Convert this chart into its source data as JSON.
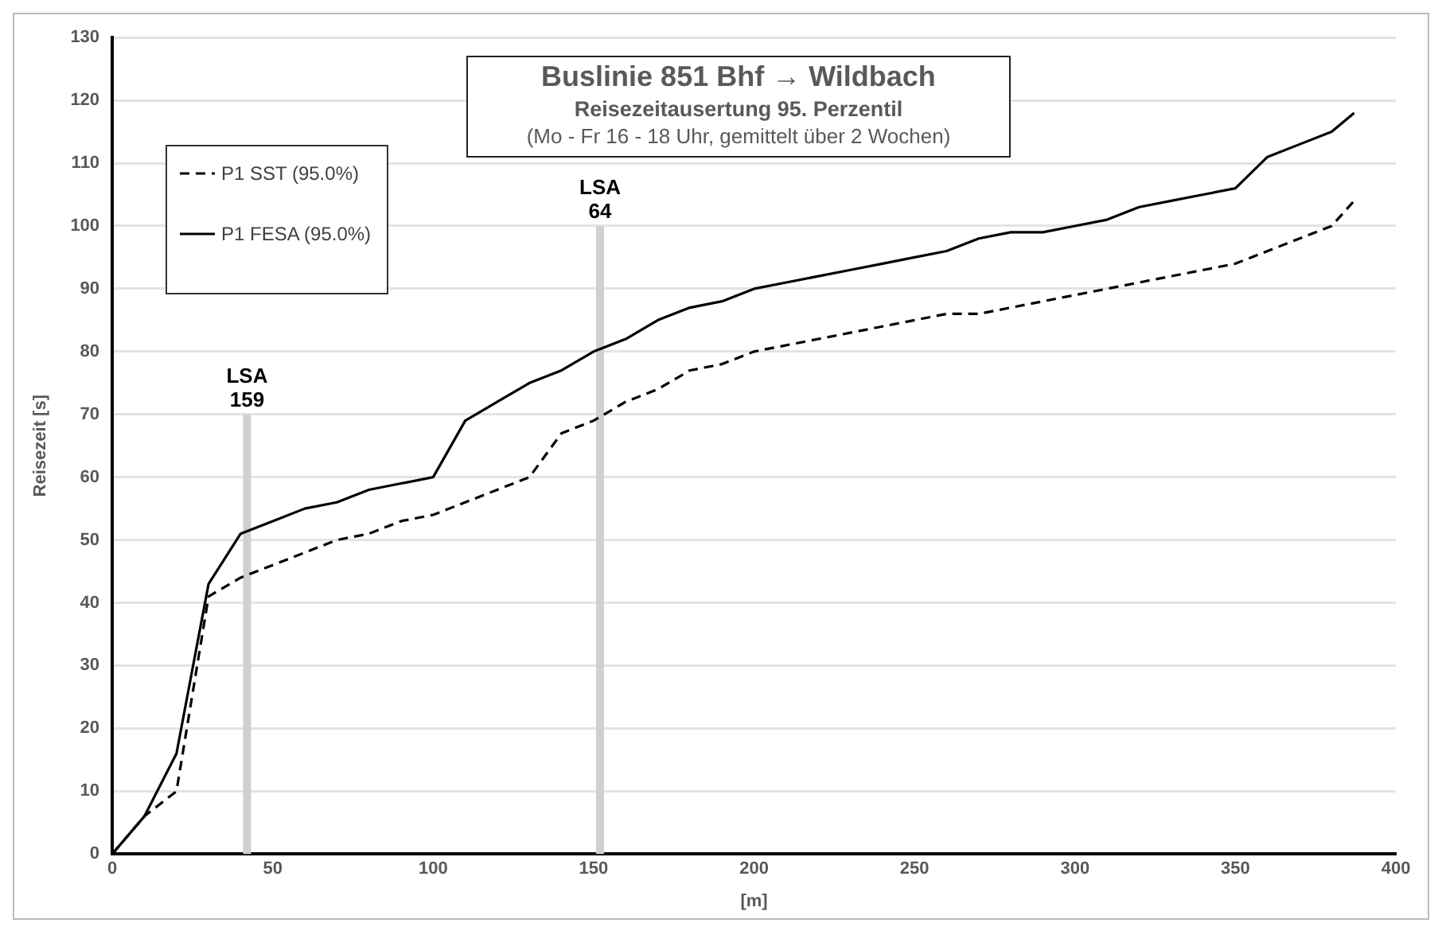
{
  "chart_data": {
    "type": "line",
    "title": "Buslinie 851 Bhf → Wildbach",
    "subtitle": "Reisezeitausertung 95. Perzentil",
    "annotations": [
      "(Mo - Fr 16 - 18 Uhr, gemittelt über 2 Wochen)",
      {
        "text": "LSA 159",
        "x": 42,
        "y": 70
      },
      {
        "text": "LSA 64",
        "x": 152,
        "y": 100
      }
    ],
    "xlabel": "[m]",
    "ylabel": "Reisezeit [s]",
    "xlim": [
      0,
      400
    ],
    "xticks": [
      0,
      50,
      100,
      150,
      200,
      250,
      300,
      350,
      400
    ],
    "ylim": [
      0,
      130
    ],
    "yticks": [
      0,
      10,
      20,
      30,
      40,
      50,
      60,
      70,
      80,
      90,
      100,
      110,
      120,
      130
    ],
    "grid": "y",
    "legend": "top left",
    "marker": "none",
    "ref_lines": [
      {
        "axis": "x",
        "value": 42,
        "color": "#d0d0d0"
      },
      {
        "axis": "x",
        "value": 152,
        "color": "#d0d0d0"
      }
    ],
    "series": [
      {
        "name": "P1 SST (95.0%)",
        "color": "#000000",
        "line_style": "dashed",
        "x": [
          0,
          10,
          20,
          30,
          40,
          50,
          60,
          70,
          80,
          90,
          100,
          110,
          120,
          130,
          140,
          150,
          160,
          170,
          180,
          190,
          200,
          210,
          220,
          230,
          240,
          250,
          260,
          270,
          280,
          290,
          300,
          310,
          320,
          330,
          340,
          350,
          360,
          370,
          380,
          387
        ],
        "values": [
          0,
          6,
          10,
          41,
          44,
          46,
          48,
          50,
          51,
          53,
          54,
          56,
          58,
          60,
          67,
          69,
          72,
          74,
          77,
          78,
          80,
          81,
          82,
          83,
          84,
          85,
          86,
          86,
          87,
          88,
          89,
          90,
          91,
          92,
          93,
          94,
          96,
          98,
          100,
          104
        ]
      },
      {
        "name": "P1 FESA (95.0%)",
        "color": "#000000",
        "line_style": "solid",
        "x": [
          0,
          10,
          20,
          30,
          40,
          50,
          60,
          70,
          80,
          90,
          100,
          110,
          120,
          130,
          140,
          150,
          160,
          170,
          180,
          190,
          200,
          210,
          220,
          230,
          240,
          250,
          260,
          270,
          280,
          290,
          300,
          310,
          320,
          330,
          340,
          350,
          360,
          370,
          380,
          387
        ],
        "values": [
          0,
          6,
          16,
          43,
          51,
          53,
          55,
          56,
          58,
          59,
          60,
          69,
          72,
          75,
          77,
          80,
          82,
          85,
          87,
          88,
          90,
          91,
          92,
          93,
          94,
          95,
          96,
          98,
          99,
          99,
          100,
          101,
          103,
          104,
          105,
          106,
          111,
          113,
          115,
          118
        ]
      }
    ]
  }
}
